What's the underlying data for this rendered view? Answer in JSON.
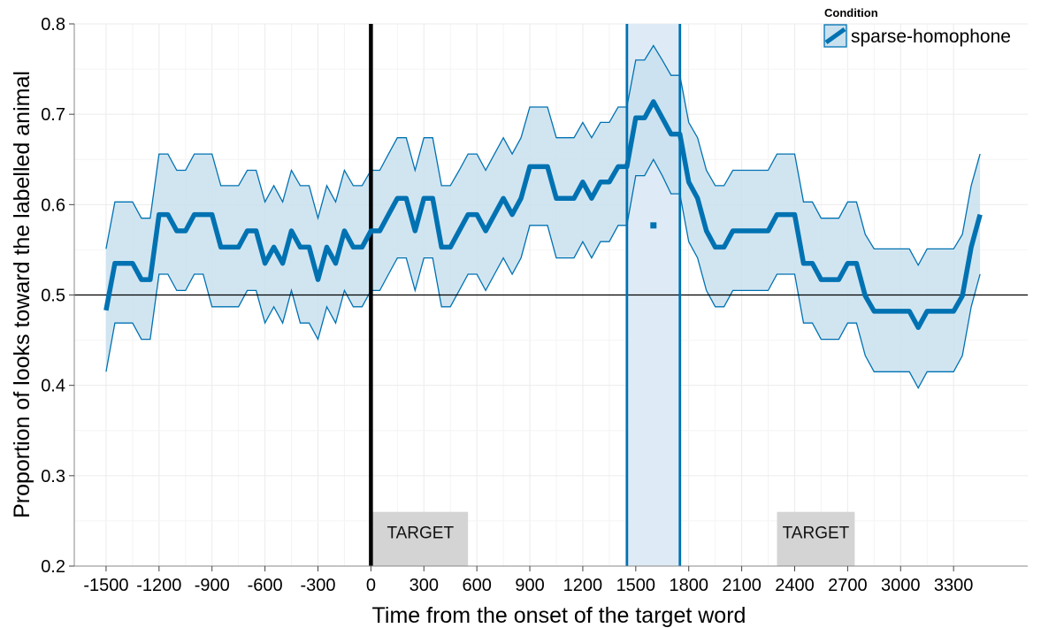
{
  "chart_data": {
    "type": "line",
    "xlabel": "Time from the onset of the target word",
    "ylabel": "Proportion of looks toward the labelled animal",
    "xlim": [
      -1680,
      3720
    ],
    "ylim": [
      0.2,
      0.8
    ],
    "x_ticks": [
      -1500,
      -1200,
      -900,
      -600,
      -300,
      0,
      300,
      600,
      900,
      1200,
      1500,
      1800,
      2100,
      2400,
      2700,
      3000,
      3300
    ],
    "x_tick_labels": [
      "-1500",
      "-1200",
      "-900",
      "-600",
      "-300",
      "0",
      "300",
      "600",
      "900",
      "1200",
      "1500",
      "1800",
      "2100",
      "2400",
      "2700",
      "3000",
      "3300"
    ],
    "y_ticks": [
      0.2,
      0.3,
      0.4,
      0.5,
      0.6,
      0.7,
      0.8
    ],
    "y_tick_labels": [
      "0.2",
      "0.3",
      "0.4",
      "0.5",
      "0.6",
      "0.7",
      "0.8"
    ],
    "grid": true,
    "legend_position": "top-right",
    "legend": {
      "title": "Condition",
      "entries": [
        "sparse-homophone"
      ]
    },
    "colors": {
      "series": "#0072B2",
      "ribbon": "#c9e0ef",
      "window": "#deebf6",
      "target_box": "#d4d4d4",
      "onset_line": "#000000",
      "chance_line": "#000000"
    },
    "reference_lines": {
      "vertical_x": 0,
      "horizontal_y": 0.5
    },
    "significance_window": {
      "x_start": 1450,
      "x_end": 1750,
      "marker_x": 1600,
      "marker_y": 0.577
    },
    "target_boxes": [
      {
        "label": "TARGET",
        "x_start": 10,
        "x_end": 550,
        "y_start": 0.2,
        "y_end": 0.26
      },
      {
        "label": "TARGET",
        "x_start": 2300,
        "x_end": 2740,
        "y_start": 0.2,
        "y_end": 0.26
      }
    ],
    "series": [
      {
        "name": "sparse-homophone",
        "x": [
          -1500,
          -1450,
          -1400,
          -1350,
          -1300,
          -1250,
          -1200,
          -1150,
          -1100,
          -1050,
          -1000,
          -950,
          -900,
          -850,
          -800,
          -750,
          -700,
          -650,
          -600,
          -550,
          -500,
          -450,
          -400,
          -350,
          -300,
          -250,
          -200,
          -150,
          -100,
          -50,
          0,
          50,
          100,
          150,
          200,
          250,
          300,
          350,
          400,
          450,
          500,
          550,
          600,
          650,
          700,
          750,
          800,
          850,
          900,
          950,
          1000,
          1050,
          1100,
          1150,
          1200,
          1250,
          1300,
          1350,
          1400,
          1450,
          1500,
          1550,
          1600,
          1650,
          1700,
          1750,
          1800,
          1850,
          1900,
          1950,
          2000,
          2050,
          2100,
          2150,
          2200,
          2250,
          2300,
          2350,
          2400,
          2450,
          2500,
          2550,
          2600,
          2650,
          2700,
          2750,
          2800,
          2850,
          2900,
          2950,
          3000,
          3050,
          3100,
          3150,
          3200,
          3250,
          3300,
          3350,
          3400,
          3450
        ],
        "y": [
          0.483,
          0.535,
          0.535,
          0.535,
          0.517,
          0.517,
          0.589,
          0.589,
          0.571,
          0.571,
          0.589,
          0.589,
          0.589,
          0.553,
          0.553,
          0.553,
          0.571,
          0.571,
          0.535,
          0.553,
          0.535,
          0.571,
          0.553,
          0.553,
          0.517,
          0.553,
          0.535,
          0.571,
          0.553,
          0.553,
          0.571,
          0.571,
          0.589,
          0.607,
          0.607,
          0.571,
          0.607,
          0.607,
          0.553,
          0.553,
          0.571,
          0.589,
          0.589,
          0.571,
          0.589,
          0.607,
          0.589,
          0.607,
          0.642,
          0.642,
          0.642,
          0.607,
          0.607,
          0.607,
          0.625,
          0.607,
          0.625,
          0.625,
          0.642,
          0.642,
          0.696,
          0.696,
          0.714,
          0.696,
          0.678,
          0.678,
          0.625,
          0.607,
          0.571,
          0.553,
          0.553,
          0.571,
          0.571,
          0.571,
          0.571,
          0.571,
          0.589,
          0.589,
          0.589,
          0.535,
          0.535,
          0.517,
          0.517,
          0.517,
          0.535,
          0.535,
          0.499,
          0.482,
          0.482,
          0.482,
          0.482,
          0.482,
          0.464,
          0.482,
          0.482,
          0.482,
          0.482,
          0.499,
          0.553,
          0.589
        ],
        "lower": [
          0.415,
          0.469,
          0.469,
          0.469,
          0.451,
          0.451,
          0.523,
          0.523,
          0.505,
          0.505,
          0.523,
          0.523,
          0.487,
          0.487,
          0.487,
          0.487,
          0.505,
          0.505,
          0.469,
          0.487,
          0.469,
          0.505,
          0.469,
          0.469,
          0.451,
          0.487,
          0.469,
          0.505,
          0.487,
          0.487,
          0.505,
          0.505,
          0.523,
          0.541,
          0.541,
          0.505,
          0.541,
          0.541,
          0.487,
          0.487,
          0.505,
          0.523,
          0.523,
          0.505,
          0.523,
          0.541,
          0.523,
          0.541,
          0.577,
          0.577,
          0.577,
          0.541,
          0.541,
          0.541,
          0.559,
          0.541,
          0.559,
          0.559,
          0.577,
          0.577,
          0.632,
          0.632,
          0.65,
          0.632,
          0.612,
          0.612,
          0.559,
          0.541,
          0.505,
          0.487,
          0.487,
          0.505,
          0.505,
          0.505,
          0.505,
          0.505,
          0.523,
          0.523,
          0.523,
          0.469,
          0.469,
          0.451,
          0.451,
          0.451,
          0.469,
          0.469,
          0.433,
          0.415,
          0.415,
          0.415,
          0.415,
          0.415,
          0.397,
          0.415,
          0.415,
          0.415,
          0.415,
          0.433,
          0.487,
          0.523
        ],
        "upper": [
          0.551,
          0.603,
          0.603,
          0.603,
          0.585,
          0.585,
          0.656,
          0.656,
          0.638,
          0.638,
          0.656,
          0.656,
          0.656,
          0.621,
          0.621,
          0.621,
          0.638,
          0.638,
          0.603,
          0.621,
          0.603,
          0.638,
          0.621,
          0.621,
          0.585,
          0.621,
          0.603,
          0.638,
          0.621,
          0.621,
          0.638,
          0.638,
          0.656,
          0.674,
          0.674,
          0.638,
          0.674,
          0.674,
          0.621,
          0.621,
          0.638,
          0.656,
          0.656,
          0.638,
          0.656,
          0.674,
          0.656,
          0.674,
          0.708,
          0.708,
          0.708,
          0.674,
          0.674,
          0.674,
          0.691,
          0.674,
          0.691,
          0.691,
          0.708,
          0.708,
          0.76,
          0.76,
          0.776,
          0.76,
          0.743,
          0.743,
          0.691,
          0.674,
          0.638,
          0.621,
          0.621,
          0.638,
          0.638,
          0.638,
          0.638,
          0.638,
          0.656,
          0.656,
          0.656,
          0.603,
          0.603,
          0.585,
          0.585,
          0.585,
          0.603,
          0.603,
          0.567,
          0.551,
          0.551,
          0.551,
          0.551,
          0.551,
          0.533,
          0.551,
          0.551,
          0.551,
          0.551,
          0.567,
          0.621,
          0.656
        ]
      }
    ]
  }
}
